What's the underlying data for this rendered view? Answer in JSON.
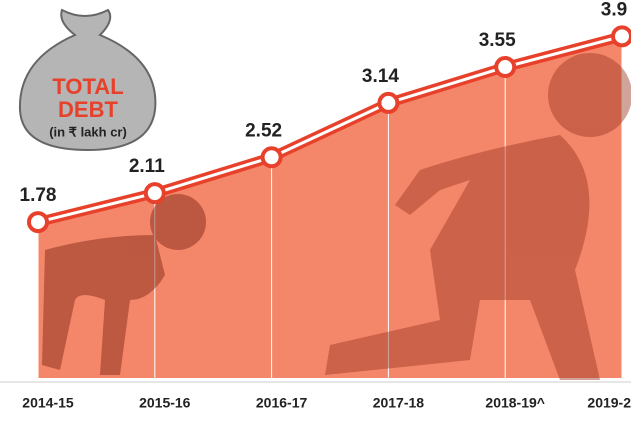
{
  "chart_data": {
    "type": "line",
    "title": [
      "TOTAL",
      "DEBT"
    ],
    "subtitle": "(in ₹ lakh cr)",
    "categories": [
      "2014-15",
      "2015-16",
      "2016-17",
      "2017-18",
      "2018-19^",
      "2019-2"
    ],
    "values": [
      1.78,
      2.11,
      2.52,
      3.14,
      3.55,
      3.9
    ],
    "color": "#e8412b",
    "fill": "#f4876a"
  }
}
